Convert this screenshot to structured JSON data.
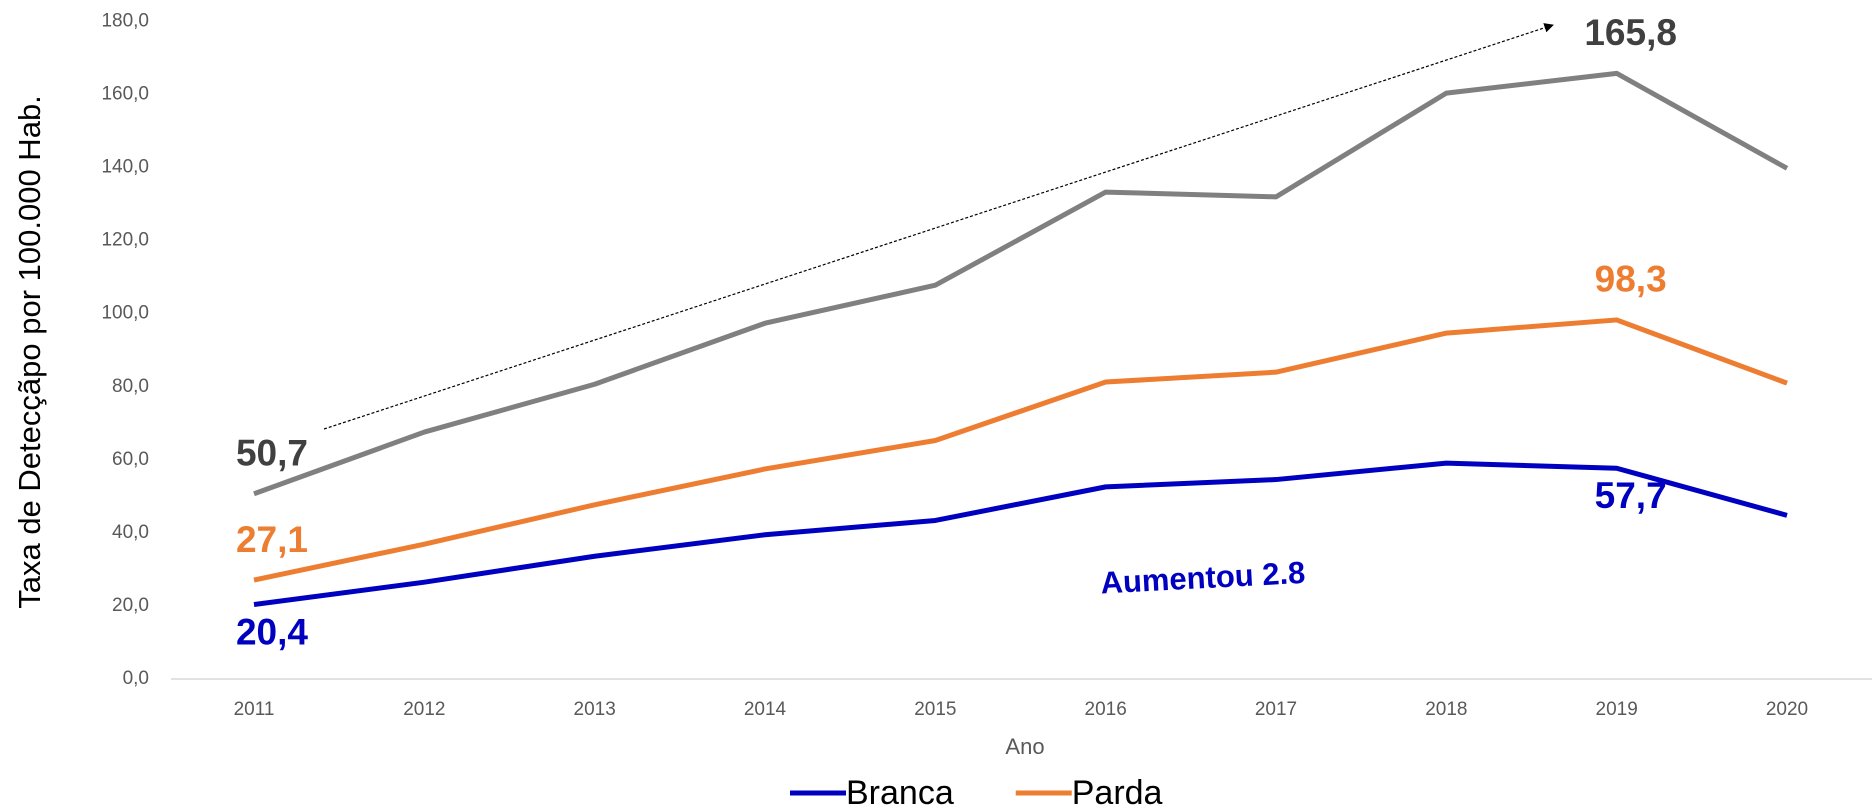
{
  "chart_data": {
    "type": "line",
    "y_label": "Taxa de Detecçãpo por 100.000 Hab.",
    "x_label": "Ano",
    "categories": [
      "2011",
      "2012",
      "2013",
      "2014",
      "2015",
      "2016",
      "2017",
      "2018",
      "2019",
      "2020"
    ],
    "series": [
      {
        "color": "#808080",
        "label_color": "#404040",
        "values": [
          50.7,
          67.6,
          80.7,
          97.4,
          107.8,
          133.3,
          132.0,
          160.4,
          165.8,
          139.8
        ],
        "value_labels": [
          "50,7",
          null,
          null,
          null,
          null,
          null,
          null,
          null,
          "165,8",
          null
        ]
      },
      {
        "name": "Parda",
        "color": "#ed7d31",
        "label_color": "#ed7d31",
        "values": [
          27.1,
          36.9,
          47.7,
          57.5,
          65.3,
          81.3,
          84.0,
          94.7,
          98.3,
          81.0
        ],
        "value_labels": [
          "27,1",
          null,
          null,
          null,
          null,
          null,
          null,
          null,
          "98,3",
          null
        ]
      },
      {
        "name": "Branca",
        "color": "#0000c0",
        "label_color": "#0000c0",
        "values": [
          20.4,
          26.5,
          33.6,
          39.5,
          43.4,
          52.6,
          54.6,
          59.1,
          57.7,
          44.8
        ],
        "value_labels": [
          "20,4",
          null,
          null,
          null,
          null,
          null,
          null,
          null,
          "57,7",
          null
        ]
      }
    ],
    "annotations": [
      {
        "text": "Aumentou 2.8",
        "color": "#0000c0"
      }
    ],
    "ylim": [
      0,
      180
    ],
    "yticks": [
      {
        "value": 0,
        "label": "0,0"
      },
      {
        "value": 20,
        "label": "20,0"
      },
      {
        "value": 40,
        "label": "40,0"
      },
      {
        "value": 60,
        "label": "60,0"
      },
      {
        "value": 80,
        "label": "80,0"
      },
      {
        "value": 100,
        "label": "100,0"
      },
      {
        "value": 120,
        "label": "120,0"
      },
      {
        "value": 140,
        "label": "140,0"
      },
      {
        "value": 160,
        "label": "160,0"
      },
      {
        "value": 180,
        "label": "180,0"
      }
    ],
    "grid": false,
    "legend": "bottom"
  }
}
